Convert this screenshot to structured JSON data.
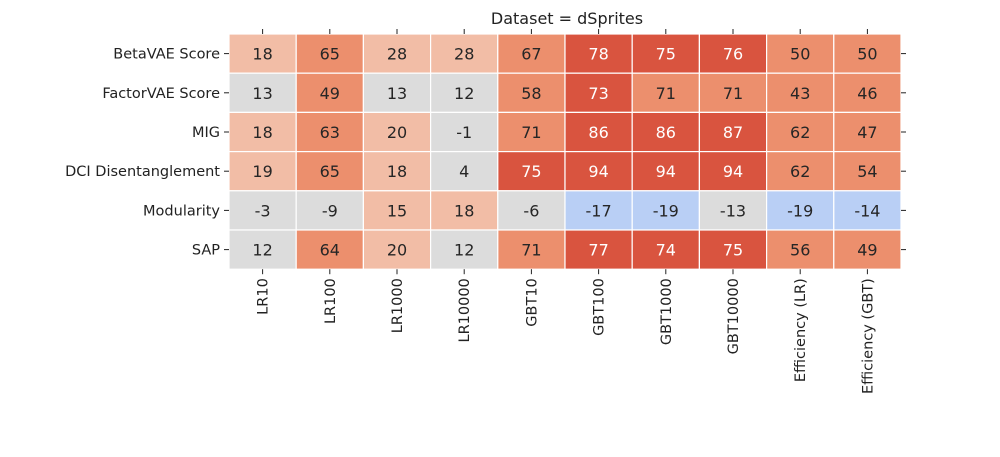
{
  "chart_data": {
    "type": "heatmap",
    "title": "Dataset = dSprites",
    "rows": [
      "BetaVAE Score",
      "FactorVAE Score",
      "MIG",
      "DCI Disentanglement",
      "Modularity",
      "SAP"
    ],
    "columns": [
      "LR10",
      "LR100",
      "LR1000",
      "LR10000",
      "GBT10",
      "GBT100",
      "GBT1000",
      "GBT10000",
      "Efficiency (LR)",
      "Efficiency (GBT)"
    ],
    "values": [
      [
        18,
        65,
        28,
        28,
        67,
        78,
        75,
        76,
        50,
        50
      ],
      [
        13,
        49,
        13,
        12,
        58,
        73,
        71,
        71,
        43,
        46
      ],
      [
        18,
        63,
        20,
        -1,
        71,
        86,
        86,
        87,
        62,
        47
      ],
      [
        19,
        65,
        18,
        4,
        75,
        94,
        94,
        94,
        62,
        54
      ],
      [
        -3,
        -9,
        15,
        18,
        -6,
        -17,
        -19,
        -13,
        -19,
        -14
      ],
      [
        12,
        64,
        20,
        12,
        71,
        77,
        74,
        75,
        56,
        49
      ]
    ],
    "colorbar": false,
    "colors": {
      "neutral": "#dcdcdc",
      "negative": "#b9cff5",
      "light_positive": "#f2bda6",
      "mid_positive": "#ec8f6d",
      "strong_positive": "#d9543f"
    }
  }
}
